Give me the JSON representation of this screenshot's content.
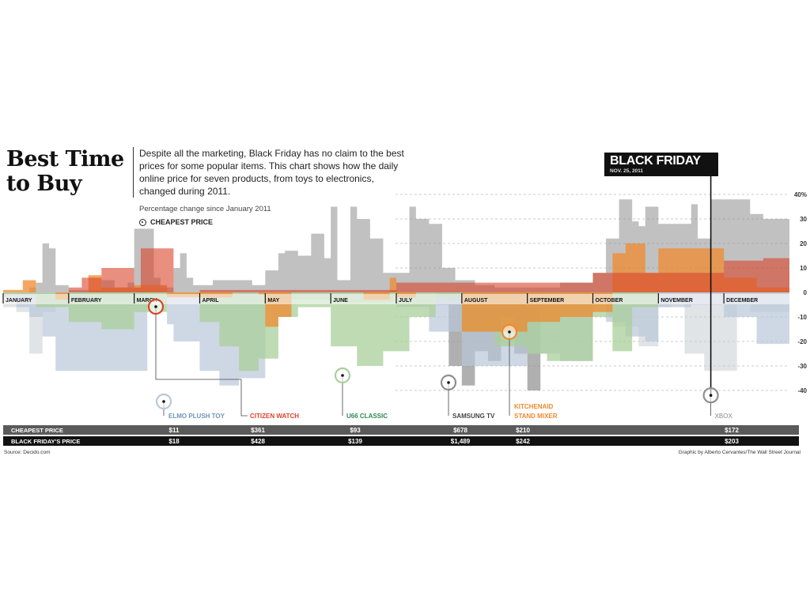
{
  "title": "Best Time to Buy",
  "intro": "Despite all the marketing, Black Friday has no claim to the best prices for some popular items. This chart shows how the daily online price for seven products, from toys to electronics, changed during 2011.",
  "subtitle": "Percentage change since January 2011",
  "legend_cheapest_label": "CHEAPEST PRICE",
  "black_friday": {
    "label": "BLACK FRIDAY",
    "date": "NOV. 25, 2011"
  },
  "source": "Source: Decido.com",
  "credit": "Graphic by Alberto Cervantes/The Wall Street Journal",
  "colors": {
    "xbox": "#8e8e8e",
    "samsung_tv": "#8e8e8e",
    "elmo": "#b9c8d8",
    "citizen": "#d9442c",
    "ugg": "#a9cf9a",
    "kitchenaid": "#ef8a2e",
    "dark": "#111111",
    "row_gray": "#5a5a5a"
  },
  "chart_data": {
    "type": "area",
    "title": "Best Time to Buy",
    "ylabel": "Percentage change since January 2011",
    "ylim": [
      -45,
      45
    ],
    "yticks": [
      "40%",
      "30",
      "20",
      "10",
      "0",
      "-10",
      "-20",
      "-30",
      "-40"
    ],
    "ytick_values": [
      40,
      30,
      20,
      10,
      0,
      -10,
      -20,
      -30,
      -40
    ],
    "grid": true,
    "months": [
      "JANUARY",
      "FEBRUARY",
      "MARCH",
      "APRIL",
      "MAY",
      "JUNE",
      "JULY",
      "AUGUST",
      "SEPTEMBER",
      "OCTOBER",
      "NOVEMBER",
      "DECEMBER"
    ],
    "black_friday_month_pos": 10.8,
    "series": [
      {
        "name": "XBOX",
        "color_key": "xbox",
        "opacity": 0.55,
        "x": [
          0,
          0.3,
          0.4,
          0.5,
          0.6,
          0.7,
          0.8,
          1.0,
          1.5,
          1.7,
          1.9,
          2.0,
          2.3,
          2.4,
          2.6,
          2.7,
          2.8,
          2.9,
          3.2,
          3.8,
          4.0,
          4.2,
          4.3,
          4.5,
          4.7,
          4.9,
          5.0,
          5.1,
          5.3,
          5.4,
          5.6,
          5.8,
          6.2,
          6.3,
          6.5,
          6.7,
          6.9,
          7.2,
          7.5,
          8.0,
          8.5,
          9.0,
          9.2,
          9.4,
          9.6,
          9.7,
          9.8,
          10.0,
          10.3,
          10.5,
          10.6,
          10.8,
          11.0,
          11.4,
          11.6,
          12.0
        ],
        "y": [
          0,
          0,
          2,
          4,
          20,
          18,
          3,
          1,
          5,
          2,
          4,
          26,
          6,
          2,
          10,
          16,
          6,
          3,
          5,
          3,
          9,
          16,
          17,
          15,
          24,
          14,
          35,
          5,
          35,
          30,
          22,
          8,
          35,
          30,
          28,
          10,
          5,
          3,
          2,
          2,
          4,
          8,
          22,
          38,
          29,
          27,
          35,
          28,
          28,
          36,
          22,
          38,
          38,
          32,
          30,
          27
        ],
        "neg_x": [
          0,
          0.2,
          0.4,
          0.6,
          0.8,
          1.0,
          1.6,
          2.0,
          4.0,
          6.8,
          7.2,
          8.0,
          9.0,
          9.3,
          9.7,
          10.0,
          10.2,
          10.4,
          10.7,
          11.0,
          11.2,
          11.4,
          12.0
        ],
        "neg_y": [
          -6,
          -8,
          -25,
          -8,
          -5,
          -3,
          -3,
          0,
          0,
          -3,
          -5,
          -4,
          -3,
          -14,
          -22,
          -6,
          -3,
          -25,
          -32,
          -32,
          -5,
          -8,
          -6
        ]
      },
      {
        "name": "SAMSUNG TV",
        "color_key": "samsung_tv",
        "opacity": 0.7,
        "x": [
          6.2,
          6.6,
          6.8,
          7.0,
          7.2,
          7.4,
          7.6,
          7.8,
          8.0,
          8.2
        ],
        "y": [
          0,
          -5,
          -30,
          -38,
          -24,
          -28,
          -10,
          -25,
          -40,
          -3
        ]
      },
      {
        "name": "ELMO PLUSH TOY",
        "color_key": "elmo",
        "opacity": 0.7,
        "x": [
          0,
          0.2,
          0.4,
          0.6,
          0.8,
          1.0,
          1.8,
          2.2,
          2.5,
          2.6,
          2.8,
          3.0,
          3.3,
          3.6,
          4.0,
          5.0,
          6.0,
          6.5,
          7.0,
          7.5,
          8.0,
          8.5,
          9.0,
          9.2,
          9.5,
          9.8,
          10.0,
          10.5,
          11.0,
          11.5,
          12.0
        ],
        "y": [
          -2,
          -6,
          -10,
          -18,
          -32,
          -32,
          -32,
          -5,
          -13,
          -20,
          -20,
          -32,
          -38,
          -35,
          -3,
          -4,
          -6,
          -16,
          -30,
          -30,
          -25,
          -28,
          -4,
          -12,
          -18,
          -20,
          -6,
          -5,
          -10,
          -21,
          -21
        ]
      },
      {
        "name": "U66 CLASSIC",
        "color_key": "ugg",
        "opacity": 0.75,
        "x": [
          0,
          0.5,
          1.0,
          1.5,
          2.0,
          2.5,
          3.0,
          3.3,
          3.6,
          3.9,
          4.2,
          4.5,
          5.0,
          5.4,
          5.8,
          6.2,
          6.6,
          7.0,
          7.5,
          8.0,
          8.3,
          8.6,
          9.0,
          9.3,
          9.6,
          10.0
        ],
        "y": [
          -1,
          -6,
          -12,
          -15,
          -8,
          -1,
          -12,
          -22,
          -32,
          -27,
          -10,
          -6,
          -22,
          -30,
          -24,
          -10,
          -2,
          -16,
          -22,
          -25,
          -28,
          -28,
          -10,
          -24,
          -6,
          -1
        ]
      },
      {
        "name": "KITCHENAID STAND MIXER",
        "color_key": "kitchenaid",
        "opacity": 0.75,
        "x": [
          0,
          0.3,
          0.5,
          0.8,
          1.0,
          1.3,
          1.5,
          2.0,
          2.5,
          3.0,
          3.5,
          3.9,
          4.0,
          4.2,
          4.4,
          4.8,
          5.5,
          5.9,
          6.0,
          6.3,
          7.0,
          7.5,
          8.0,
          8.5,
          9.0,
          9.3,
          9.5,
          9.8,
          10.0,
          10.5,
          11.0,
          11.5,
          12.0
        ],
        "y": [
          1,
          5,
          0,
          -3,
          0,
          7,
          2,
          3,
          -2,
          -2,
          0,
          -1,
          -14,
          -10,
          0,
          0,
          -3,
          6,
          -2,
          0,
          -16,
          -16,
          -12,
          -10,
          -8,
          16,
          20,
          8,
          18,
          18,
          6,
          2,
          0
        ]
      },
      {
        "name": "CITIZEN WATCH",
        "color_key": "citizen",
        "opacity": 0.6,
        "x": [
          0,
          1.0,
          1.2,
          1.5,
          2.0,
          2.1,
          2.5,
          2.6,
          3.0,
          6.0,
          9.0,
          11.0,
          11.6,
          12.0
        ],
        "y": [
          0,
          2,
          6,
          10,
          2,
          18,
          18,
          0,
          1,
          4,
          8,
          13,
          14,
          15
        ]
      }
    ],
    "cheapest_markers": [
      {
        "name": "ELMO PLUSH TOY",
        "color_key": "elmo",
        "month_pos": 2.35,
        "y": -42
      },
      {
        "name": "CITIZEN WATCH",
        "color_key": "citizen",
        "month_pos": 2.35,
        "y": -5
      },
      {
        "name": "U66 CLASSIC",
        "color_key": "ugg",
        "month_pos": 5.15,
        "y": -33
      },
      {
        "name": "SAMSUNG TV",
        "color_key": "samsung_tv",
        "month_pos": 6.75,
        "y": -36
      },
      {
        "name": "KITCHENAID STAND MIXER",
        "color_key": "kitchenaid",
        "month_pos": 7.7,
        "y": -16
      },
      {
        "name": "XBOX",
        "color_key": "xbox",
        "month_pos": 10.8,
        "y": -42
      }
    ],
    "table": {
      "row_labels": [
        "CHEAPEST PRICE",
        "BLACK FRIDAY'S PRICE"
      ],
      "columns": [
        {
          "product": "ELMO PLUSH TOY",
          "cheapest": "$11",
          "black_friday": "$18"
        },
        {
          "product": "CITIZEN WATCH",
          "cheapest": "$361",
          "black_friday": "$428"
        },
        {
          "product": "U66 CLASSIC",
          "cheapest": "$93",
          "black_friday": "$139"
        },
        {
          "product": "SAMSUNG TV",
          "cheapest": "$678",
          "black_friday": "$1,489"
        },
        {
          "product": "KITCHENAID STAND MIXER",
          "cheapest": "$210",
          "black_friday": "$242"
        },
        {
          "product": "XBOX",
          "cheapest": "$172",
          "black_friday": "$203"
        }
      ]
    }
  },
  "labels": {
    "elmo": "ELMO PLUSH TOY",
    "citizen": "CITIZEN WATCH",
    "ugg": "U66 CLASSIC",
    "samsung": "SAMSUNG TV",
    "kitchenaid_line1": "KITCHENAID",
    "kitchenaid_line2": "STAND MIXER",
    "xbox": "XBOX"
  }
}
